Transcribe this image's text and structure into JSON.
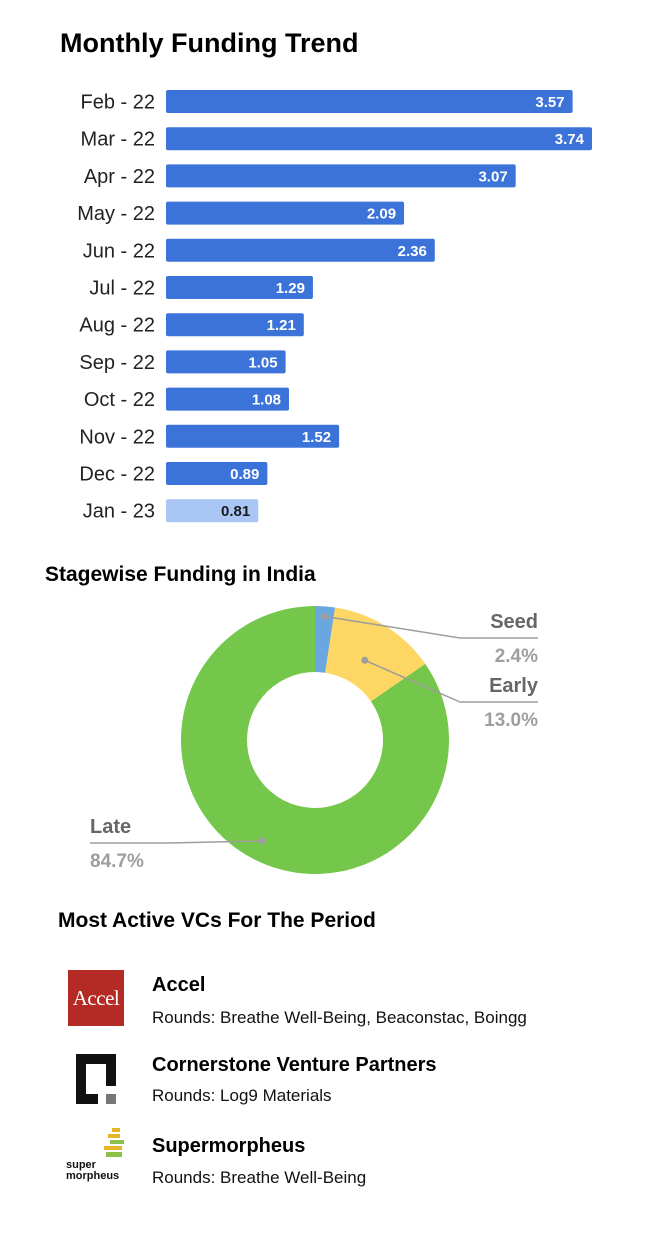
{
  "charts": {
    "bar_title": "Monthly Funding Trend",
    "pie_title": "Stagewise Funding in India"
  },
  "chart_data": [
    {
      "type": "bar",
      "orientation": "horizontal",
      "title": "Monthly Funding Trend",
      "categories": [
        "Feb - 22",
        "Mar - 22",
        "Apr - 22",
        "May - 22",
        "Jun - 22",
        "Jul - 22",
        "Aug - 22",
        "Sep - 22",
        "Oct - 22",
        "Nov - 22",
        "Dec - 22",
        "Jan - 23"
      ],
      "values": [
        3.57,
        3.74,
        3.07,
        2.09,
        2.36,
        1.29,
        1.21,
        1.05,
        1.08,
        1.52,
        0.89,
        0.81
      ],
      "value_labels": [
        "3.57",
        "3.74",
        "3.07",
        "2.09",
        "2.36",
        "1.29",
        "1.21",
        "1.05",
        "1.08",
        "1.52",
        "0.89",
        "0.81"
      ],
      "xlim": [
        0,
        3.74
      ],
      "grid": false,
      "colors": {
        "bar": "#3b73d9",
        "highlight": "#a9c6f5",
        "label": "#ffffff",
        "highlight_label": "#1a1a1a"
      },
      "highlighted_index": 11
    },
    {
      "type": "pie",
      "style": "donut",
      "title": "Stagewise Funding in India",
      "slices": [
        {
          "name": "Seed",
          "value": 2.4,
          "label": "2.4%",
          "color": "#6aa6e0"
        },
        {
          "name": "Early",
          "value": 13.0,
          "label": "13.0%",
          "color": "#fdd663"
        },
        {
          "name": "Late",
          "value": 84.7,
          "label": "84.7%",
          "color": "#74c74a"
        }
      ]
    }
  ],
  "vcs": {
    "title": "Most Active VCs For The Period",
    "items": [
      {
        "name": "Accel",
        "rounds": "Rounds: Breathe Well-Being, Beaconstac, Boingg",
        "logo_text": "Accel",
        "logo_icon": "accel-logo-icon",
        "logo_color": "#b42b26"
      },
      {
        "name": "Cornerstone Venture Partners",
        "rounds": "Rounds: Log9 Materials",
        "logo_icon": "cornerstone-logo-icon"
      },
      {
        "name": "Supermorpheus",
        "rounds": "Rounds: Breathe Well-Being",
        "logo_text_1": "super",
        "logo_text_2": "morpheus",
        "logo_icon": "supermorpheus-logo-icon"
      }
    ]
  }
}
